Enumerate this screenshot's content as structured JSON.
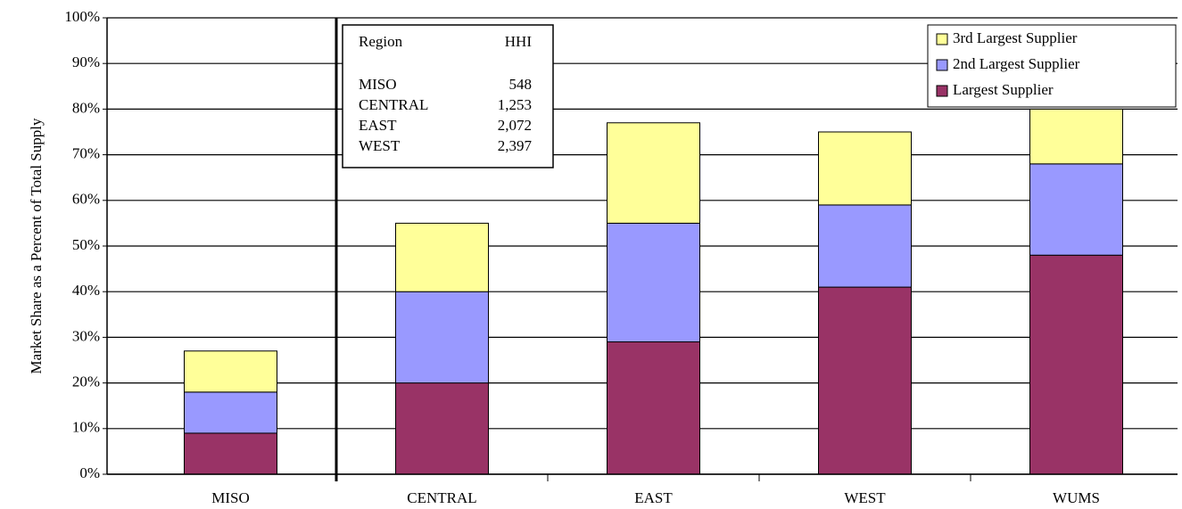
{
  "chart_data": {
    "type": "stacked_bar",
    "ylabel": "Market Share as a Percent of Total Supply",
    "categories": [
      "MISO",
      "CENTRAL",
      "EAST",
      "WEST",
      "WUMS"
    ],
    "series": [
      {
        "name": "Largest Supplier",
        "color": "#993366",
        "values": [
          9,
          20,
          29,
          41,
          48
        ]
      },
      {
        "name": "2nd Largest Supplier",
        "color": "#9999ff",
        "values": [
          9,
          20,
          26,
          18,
          20
        ]
      },
      {
        "name": "3rd Largest Supplier",
        "color": "#ffff99",
        "values": [
          9,
          15,
          22,
          16,
          12
        ]
      }
    ],
    "ylim": [
      0,
      100
    ],
    "yticks": [
      {
        "value": 0,
        "label": "0%"
      },
      {
        "value": 10,
        "label": "10%"
      },
      {
        "value": 20,
        "label": "20%"
      },
      {
        "value": 30,
        "label": "30%"
      },
      {
        "value": 40,
        "label": "40%"
      },
      {
        "value": 50,
        "label": "50%"
      },
      {
        "value": 60,
        "label": "60%"
      },
      {
        "value": 70,
        "label": "70%"
      },
      {
        "value": 80,
        "label": "80%"
      },
      {
        "value": 90,
        "label": "90%"
      },
      {
        "value": 100,
        "label": "100%"
      }
    ],
    "grid": true,
    "legend": "upper right",
    "inset_table": {
      "header": [
        "Region",
        "HHI"
      ],
      "rows": [
        [
          "MISO",
          "548"
        ],
        [
          "CENTRAL",
          "1,253"
        ],
        [
          "EAST",
          "2,072"
        ],
        [
          "WEST",
          "2,397"
        ]
      ]
    }
  }
}
